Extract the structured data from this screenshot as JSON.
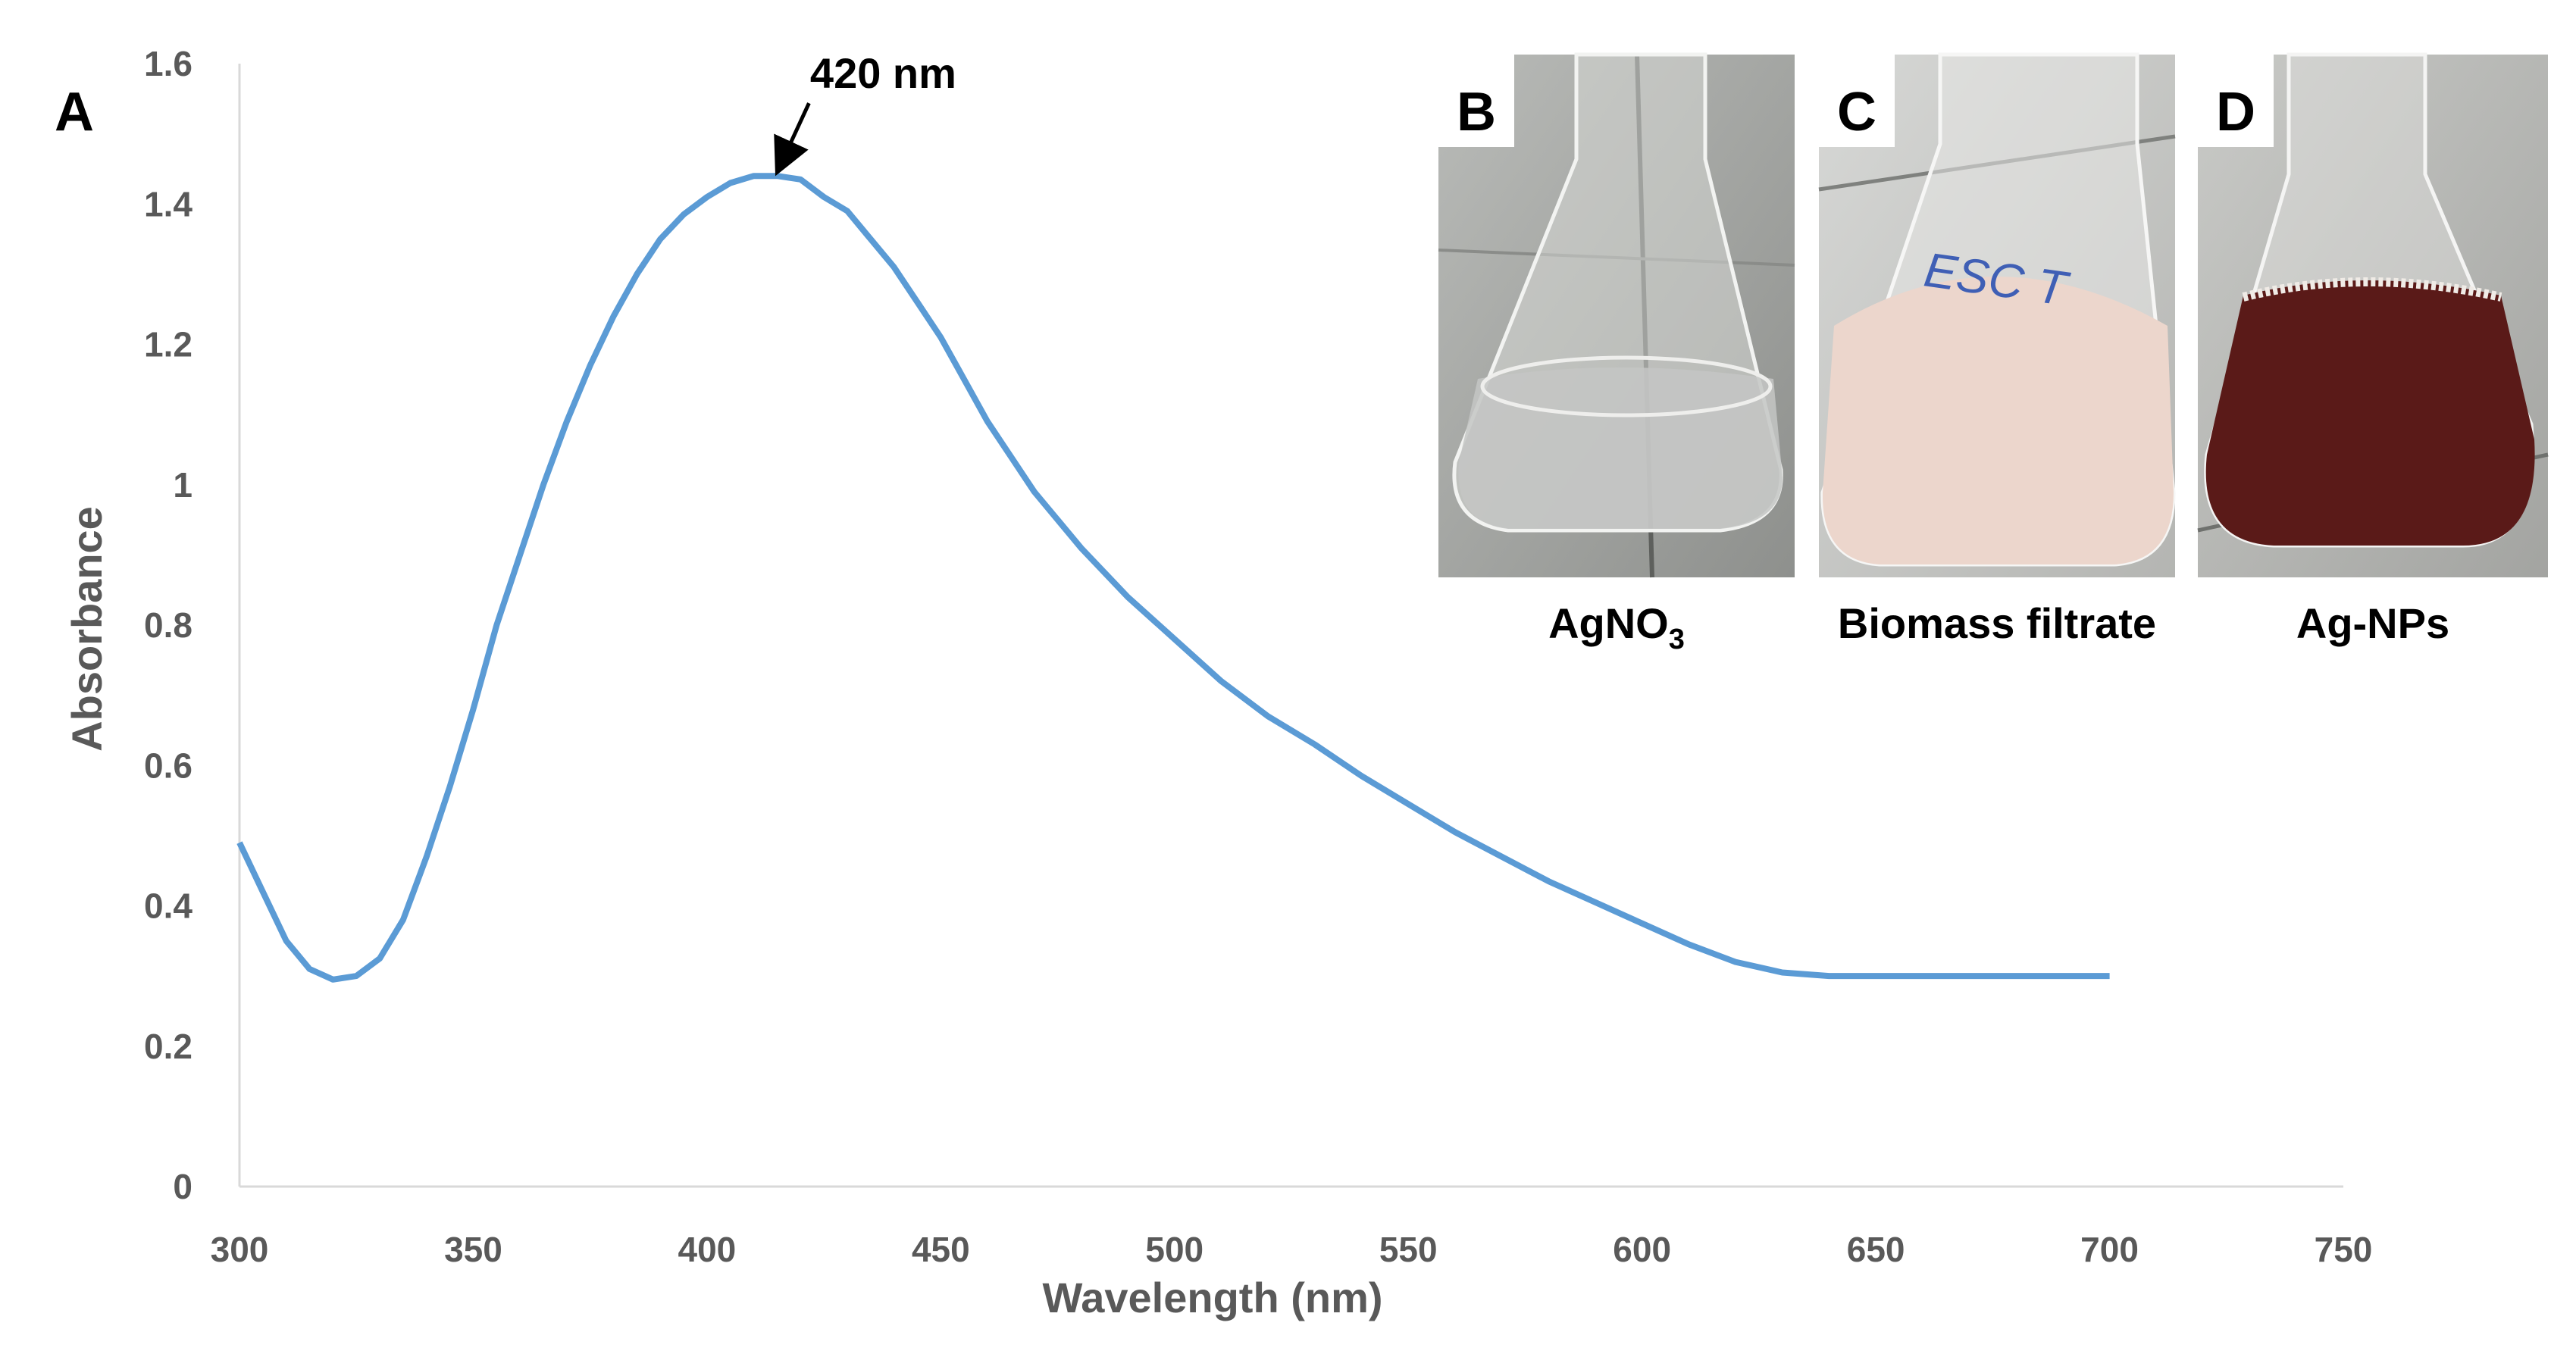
{
  "chart_data": {
    "type": "line",
    "panel_label": "A",
    "xlabel": "Wavelength (nm)",
    "ylabel": "Absorbance",
    "xlim": [
      300,
      750
    ],
    "ylim": [
      0,
      1.6
    ],
    "x_ticks": [
      "300",
      "350",
      "400",
      "450",
      "500",
      "550",
      "600",
      "650",
      "700",
      "750"
    ],
    "y_ticks": [
      "0",
      "0.2",
      "0.4",
      "0.6",
      "0.8",
      "1",
      "1.2",
      "1.4",
      "1.6"
    ],
    "grid": false,
    "series": [
      {
        "color": "#5b9bd5",
        "x": [
          300,
          305,
          310,
          315,
          320,
          325,
          330,
          335,
          340,
          345,
          350,
          355,
          360,
          365,
          370,
          375,
          380,
          385,
          390,
          395,
          400,
          405,
          410,
          415,
          420,
          425,
          430,
          435,
          440,
          445,
          450,
          455,
          460,
          465,
          470,
          475,
          480,
          490,
          500,
          510,
          520,
          530,
          540,
          550,
          560,
          570,
          580,
          590,
          600,
          610,
          620,
          630,
          640,
          650,
          660,
          670,
          680,
          690,
          700
        ],
        "y": [
          0.49,
          0.42,
          0.35,
          0.31,
          0.295,
          0.3,
          0.325,
          0.38,
          0.47,
          0.57,
          0.68,
          0.8,
          0.9,
          1.0,
          1.09,
          1.17,
          1.24,
          1.3,
          1.35,
          1.385,
          1.41,
          1.43,
          1.44,
          1.44,
          1.435,
          1.41,
          1.39,
          1.35,
          1.31,
          1.26,
          1.21,
          1.15,
          1.09,
          1.04,
          0.99,
          0.95,
          0.91,
          0.84,
          0.78,
          0.72,
          0.67,
          0.63,
          0.585,
          0.545,
          0.505,
          0.47,
          0.435,
          0.405,
          0.375,
          0.345,
          0.32,
          0.305,
          0.3,
          0.3,
          0.3,
          0.3,
          0.3,
          0.3,
          0.3
        ]
      }
    ],
    "annotations": [
      {
        "text": "420 nm",
        "x": 415,
        "y": 1.44
      }
    ]
  },
  "photos": [
    {
      "letter": "B",
      "caption_main": "AgNO",
      "caption_sub": "3",
      "ink_text": "",
      "liquid_color": "#c4c6c4"
    },
    {
      "letter": "C",
      "caption_main": "Biomass filtrate",
      "caption_sub": "",
      "ink_text": "ESC T",
      "liquid_color": "#ecd6cc"
    },
    {
      "letter": "D",
      "caption_main": "Ag-NPs",
      "caption_sub": "",
      "ink_text": "",
      "liquid_color": "#5a1a18"
    }
  ]
}
